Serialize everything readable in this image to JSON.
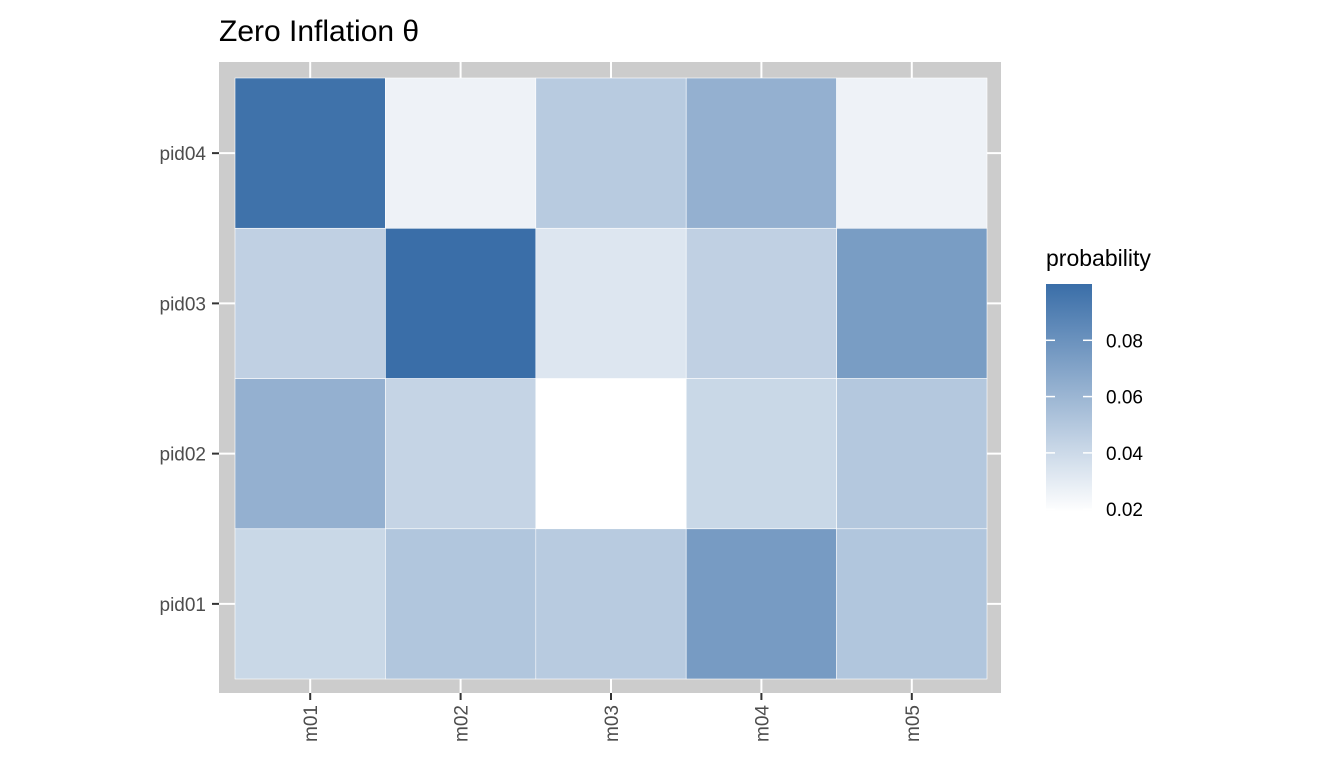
{
  "chart_data": {
    "type": "heatmap",
    "title": "Zero Inflation θ",
    "xlabel": "",
    "ylabel": "",
    "x_categories": [
      "m01",
      "m02",
      "m03",
      "m04",
      "m05"
    ],
    "y_categories": [
      "pid01",
      "pid02",
      "pid03",
      "pid04"
    ],
    "values": [
      [
        0.041,
        0.051,
        0.048,
        0.075,
        0.051
      ],
      [
        0.063,
        0.043,
        0.019,
        0.041,
        0.05
      ],
      [
        0.045,
        0.1,
        0.033,
        0.045,
        0.074
      ],
      [
        0.098,
        0.026,
        0.048,
        0.063,
        0.026
      ]
    ],
    "grid": true,
    "legend": {
      "title": "probability",
      "position": "right",
      "breaks": [
        0.02,
        0.04,
        0.06,
        0.08
      ],
      "break_labels": [
        "0.02",
        "0.04",
        "0.06",
        "0.08"
      ],
      "range": [
        0.019,
        0.1
      ],
      "low_color": "#ffffff",
      "high_color": "#3a6ea8"
    },
    "panel_background": "#cccccc",
    "gridline_color": "#ffffff"
  }
}
